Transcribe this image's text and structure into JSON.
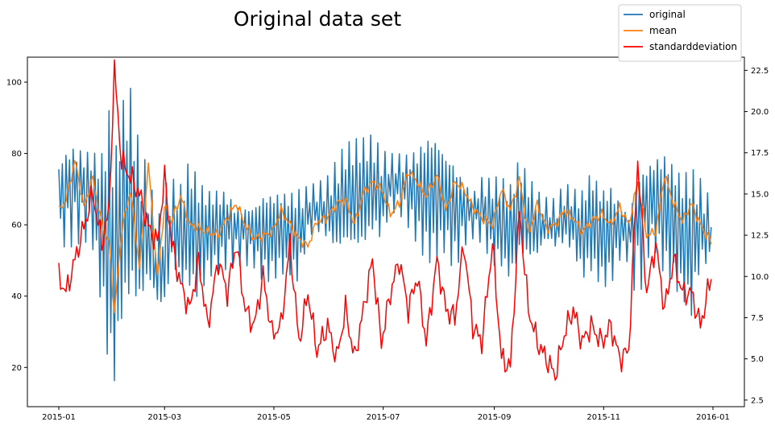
{
  "chart_data": {
    "type": "line",
    "title": "Original data set",
    "x_ticks": [
      "2015-01",
      "2015-03",
      "2015-05",
      "2015-07",
      "2015-09",
      "2015-11",
      "2016-01"
    ],
    "xlim": [
      "2015-01-01",
      "2016-01-01"
    ],
    "left_axis": {
      "ylim": [
        9,
        107
      ],
      "ticks": [
        "20",
        "40",
        "60",
        "80",
        "100"
      ]
    },
    "right_axis": {
      "ylim": [
        2.1,
        23.3
      ],
      "ticks": [
        "2.5",
        "5.0",
        "7.5",
        "10.0",
        "12.5",
        "15.0",
        "17.5",
        "20.0",
        "22.5"
      ]
    },
    "legend_position": "upper-right, outside plot area",
    "series": [
      {
        "name": "original",
        "color": "#1f77b4",
        "axis": "left",
        "x": [
          "2015-01-01",
          "2015-01-05",
          "2015-01-10",
          "2015-01-15",
          "2015-01-20",
          "2015-01-25",
          "2015-01-29",
          "2015-02-01",
          "2015-02-05",
          "2015-02-10",
          "2015-02-15",
          "2015-02-20",
          "2015-02-25",
          "2015-03-01",
          "2015-03-05",
          "2015-03-10",
          "2015-03-15",
          "2015-03-20",
          "2015-03-25",
          "2015-03-31",
          "2015-04-05",
          "2015-04-10",
          "2015-04-15",
          "2015-04-20",
          "2015-04-25",
          "2015-04-30",
          "2015-05-05",
          "2015-05-10",
          "2015-05-15",
          "2015-05-20",
          "2015-05-25",
          "2015-05-31",
          "2015-06-05",
          "2015-06-10",
          "2015-06-15",
          "2015-06-20",
          "2015-06-25",
          "2015-06-30",
          "2015-07-05",
          "2015-07-10",
          "2015-07-15",
          "2015-07-20",
          "2015-07-25",
          "2015-07-31",
          "2015-08-05",
          "2015-08-10",
          "2015-08-15",
          "2015-08-20",
          "2015-08-25",
          "2015-08-31",
          "2015-09-05",
          "2015-09-10",
          "2015-09-15",
          "2015-09-20",
          "2015-09-25",
          "2015-09-30",
          "2015-10-05",
          "2015-10-10",
          "2015-10-15",
          "2015-10-20",
          "2015-10-25",
          "2015-10-31",
          "2015-11-05",
          "2015-11-10",
          "2015-11-15",
          "2015-11-20",
          "2015-11-25",
          "2015-11-30",
          "2015-12-05",
          "2015-12-10",
          "2015-12-15",
          "2015-12-20",
          "2015-12-25",
          "2015-12-31"
        ],
        "y_max": [
          83,
          92,
          100,
          95,
          90,
          87,
          97,
          80,
          95,
          102,
          90,
          88,
          72,
          86,
          80,
          75,
          80,
          73,
          71,
          75,
          79,
          76,
          74,
          71,
          72,
          70,
          70,
          71,
          76,
          77,
          79,
          80,
          83,
          84,
          84,
          85,
          88,
          88,
          88,
          89,
          88,
          87,
          88,
          86,
          82,
          84,
          80,
          76,
          83,
          80,
          76,
          72,
          79,
          75,
          73,
          72,
          74,
          79,
          74,
          72,
          76,
          71,
          75,
          72,
          70,
          99,
          88,
          85,
          83,
          78,
          75,
          82,
          80,
          76
        ],
        "y_min": [
          50,
          46,
          40,
          44,
          45,
          30,
          14,
          13,
          30,
          35,
          25,
          28,
          22,
          16,
          40,
          38,
          40,
          38,
          44,
          42,
          40,
          40,
          42,
          44,
          42,
          44,
          46,
          44,
          38,
          50,
          50,
          48,
          46,
          52,
          52,
          52,
          54,
          48,
          55,
          54,
          52,
          50,
          48,
          50,
          52,
          42,
          48,
          50,
          46,
          42,
          45,
          43,
          50,
          48,
          46,
          50,
          45,
          46,
          48,
          42,
          46,
          42,
          40,
          46,
          44,
          18,
          42,
          48,
          44,
          42,
          38,
          28,
          40,
          38
        ]
      },
      {
        "name": "mean",
        "color": "#ff7f0e",
        "axis": "left",
        "x": [
          "2015-01-01",
          "2015-01-05",
          "2015-01-10",
          "2015-01-15",
          "2015-01-20",
          "2015-01-25",
          "2015-01-29",
          "2015-02-01",
          "2015-02-05",
          "2015-02-10",
          "2015-02-15",
          "2015-02-20",
          "2015-02-25",
          "2015-03-01",
          "2015-03-05",
          "2015-03-10",
          "2015-03-15",
          "2015-03-20",
          "2015-03-25",
          "2015-03-31",
          "2015-04-05",
          "2015-04-10",
          "2015-04-15",
          "2015-04-20",
          "2015-04-25",
          "2015-04-30",
          "2015-05-05",
          "2015-05-10",
          "2015-05-15",
          "2015-05-20",
          "2015-05-25",
          "2015-05-31",
          "2015-06-05",
          "2015-06-10",
          "2015-06-15",
          "2015-06-20",
          "2015-06-25",
          "2015-06-30",
          "2015-07-05",
          "2015-07-10",
          "2015-07-15",
          "2015-07-20",
          "2015-07-25",
          "2015-07-31",
          "2015-08-05",
          "2015-08-10",
          "2015-08-15",
          "2015-08-20",
          "2015-08-25",
          "2015-08-31",
          "2015-09-05",
          "2015-09-10",
          "2015-09-15",
          "2015-09-20",
          "2015-09-25",
          "2015-09-30",
          "2015-10-05",
          "2015-10-10",
          "2015-10-15",
          "2015-10-20",
          "2015-10-25",
          "2015-10-31",
          "2015-11-05",
          "2015-11-10",
          "2015-11-15",
          "2015-11-20",
          "2015-11-25",
          "2015-11-30",
          "2015-12-05",
          "2015-12-10",
          "2015-12-15",
          "2015-12-20",
          "2015-12-25",
          "2015-12-31"
        ],
        "y": [
          64,
          67,
          78,
          65,
          73,
          60,
          55,
          35,
          58,
          70,
          48,
          77,
          45,
          65,
          61,
          68,
          60,
          59,
          58,
          57,
          62,
          66,
          60,
          56,
          57,
          58,
          64,
          60,
          56,
          54,
          61,
          62,
          66,
          67,
          60,
          69,
          72,
          70,
          63,
          66,
          75,
          72,
          68,
          74,
          64,
          72,
          70,
          65,
          62,
          60,
          70,
          64,
          73,
          57,
          66,
          59,
          60,
          64,
          62,
          58,
          61,
          63,
          60,
          65,
          60,
          72,
          57,
          58,
          74,
          66,
          61,
          66,
          60,
          55
        ]
      },
      {
        "name": "standarddeviation",
        "color": "#ff0000",
        "axis": "right",
        "x": [
          "2015-01-01",
          "2015-01-05",
          "2015-01-10",
          "2015-01-15",
          "2015-01-20",
          "2015-01-25",
          "2015-01-29",
          "2015-02-01",
          "2015-02-05",
          "2015-02-10",
          "2015-02-15",
          "2015-02-20",
          "2015-02-25",
          "2015-03-01",
          "2015-03-05",
          "2015-03-10",
          "2015-03-15",
          "2015-03-20",
          "2015-03-25",
          "2015-03-31",
          "2015-04-05",
          "2015-04-10",
          "2015-04-15",
          "2015-04-20",
          "2015-04-25",
          "2015-04-30",
          "2015-05-05",
          "2015-05-10",
          "2015-05-15",
          "2015-05-20",
          "2015-05-25",
          "2015-05-31",
          "2015-06-05",
          "2015-06-10",
          "2015-06-15",
          "2015-06-20",
          "2015-06-25",
          "2015-06-30",
          "2015-07-05",
          "2015-07-10",
          "2015-07-15",
          "2015-07-20",
          "2015-07-25",
          "2015-07-31",
          "2015-08-05",
          "2015-08-10",
          "2015-08-15",
          "2015-08-20",
          "2015-08-25",
          "2015-08-31",
          "2015-09-05",
          "2015-09-10",
          "2015-09-15",
          "2015-09-20",
          "2015-09-25",
          "2015-09-30",
          "2015-10-05",
          "2015-10-10",
          "2015-10-15",
          "2015-10-20",
          "2015-10-25",
          "2015-10-31",
          "2015-11-05",
          "2015-11-10",
          "2015-11-15",
          "2015-11-20",
          "2015-11-25",
          "2015-11-30",
          "2015-12-05",
          "2015-12-10",
          "2015-12-15",
          "2015-12-20",
          "2015-12-25",
          "2015-12-31"
        ],
        "y": [
          10,
          9,
          11,
          13,
          15,
          12,
          14,
          22.5,
          17,
          16,
          15,
          13,
          12,
          16,
          12,
          9.5,
          8,
          11,
          7,
          11,
          9,
          12,
          8,
          7,
          10,
          6.5,
          7,
          12,
          6,
          9,
          5.5,
          7,
          5,
          8,
          5,
          8,
          11,
          6,
          9,
          11,
          8,
          10,
          6,
          11,
          8,
          7.5,
          12,
          7,
          6,
          12,
          5,
          4.5,
          14,
          8,
          6,
          5,
          4,
          6.5,
          8,
          6,
          7,
          6,
          7,
          5,
          5.5,
          17,
          9,
          12,
          8,
          11,
          9,
          9,
          7,
          10
        ]
      }
    ]
  }
}
